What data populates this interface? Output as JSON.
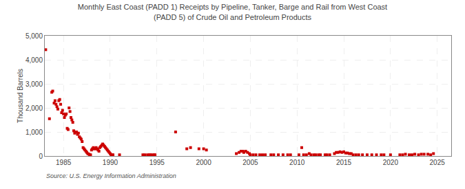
{
  "chart_data": {
    "type": "scatter",
    "title": "Monthly East Coast (PADD 1) Receipts by Pipeline, Tanker, Barge and Rail from West Coast\n(PADD 5) of Crude Oil and Petroleum Products",
    "ylabel": "Thousand Barrels",
    "annotations": [
      "Source: U.S. Energy Information Administration"
    ],
    "color": "#cc0000",
    "marker": "square",
    "grid": true,
    "xlim": [
      1983.0,
      2026.5
    ],
    "xticks": [
      1985,
      1990,
      1995,
      2000,
      2005,
      2010,
      2015,
      2020,
      2025
    ],
    "ylim": [
      0,
      5000
    ],
    "yticks": [
      0,
      {
        "value": 1000,
        "label": "1,000"
      },
      {
        "value": 2000,
        "label": "2,000"
      },
      {
        "value": 3000,
        "label": "3,000"
      },
      {
        "value": 4000,
        "label": "4,000"
      },
      {
        "value": 5000,
        "label": "5,000"
      }
    ],
    "x": [
      1983.1,
      1983.5,
      1983.75,
      1983.85,
      1984.0,
      1984.1,
      1984.2,
      1984.3,
      1984.4,
      1984.5,
      1984.6,
      1984.7,
      1984.8,
      1984.9,
      1985.0,
      1985.1,
      1985.2,
      1985.3,
      1985.4,
      1985.5,
      1985.6,
      1985.7,
      1985.8,
      1985.9,
      1986.0,
      1986.1,
      1986.2,
      1986.3,
      1986.4,
      1986.5,
      1986.6,
      1986.7,
      1986.8,
      1986.9,
      1987.0,
      1987.1,
      1987.2,
      1987.3,
      1987.4,
      1987.5,
      1987.6,
      1987.7,
      1987.8,
      1987.9,
      1988.0,
      1988.1,
      1988.2,
      1988.3,
      1988.4,
      1988.5,
      1988.6,
      1988.7,
      1988.8,
      1988.9,
      1989.0,
      1989.1,
      1989.2,
      1989.3,
      1989.4,
      1989.5,
      1989.6,
      1989.7,
      1989.8,
      1989.9,
      1990.0,
      1990.1,
      1990.2,
      1990.3,
      1991.0,
      1993.5,
      1993.7,
      1994.0,
      1994.2,
      1994.3,
      1994.5,
      1994.7,
      1994.8,
      1997.0,
      1998.2,
      1998.6,
      1999.5,
      2000.0,
      2000.3,
      2003.5,
      2003.8,
      2004.0,
      2004.2,
      2004.3,
      2004.5,
      2004.7,
      2004.9,
      2005.0,
      2005.3,
      2005.6,
      2006.0,
      2006.3,
      2006.6,
      2007.2,
      2007.5,
      2008.0,
      2008.5,
      2009.0,
      2009.3,
      2010.2,
      2010.5,
      2010.7,
      2011.0,
      2011.3,
      2011.5,
      2011.8,
      2012.0,
      2012.3,
      2012.5,
      2013.0,
      2013.2,
      2013.5,
      2014.0,
      2014.2,
      2014.4,
      2014.6,
      2014.8,
      2015.0,
      2015.2,
      2015.4,
      2015.6,
      2015.8,
      2016.0,
      2016.3,
      2016.6,
      2017.0,
      2017.5,
      2018.0,
      2018.5,
      2019.0,
      2019.3,
      2020.0,
      2021.0,
      2021.3,
      2021.6,
      2022.0,
      2022.3,
      2022.6,
      2023.0,
      2023.3,
      2023.6,
      2024.0,
      2024.3,
      2024.6
    ],
    "values": [
      4420,
      1550,
      2650,
      2700,
      2200,
      2300,
      2150,
      2050,
      1950,
      2300,
      2350,
      2150,
      1800,
      1900,
      1750,
      1600,
      1700,
      1750,
      1150,
      1100,
      2000,
      1850,
      1600,
      1500,
      1400,
      1050,
      950,
      1000,
      1000,
      900,
      950,
      800,
      750,
      700,
      600,
      350,
      300,
      250,
      200,
      150,
      100,
      80,
      50,
      50,
      250,
      300,
      350,
      300,
      300,
      350,
      300,
      250,
      200,
      350,
      400,
      450,
      500,
      450,
      400,
      350,
      300,
      250,
      200,
      150,
      100,
      50,
      50,
      50,
      50,
      50,
      50,
      50,
      50,
      50,
      50,
      50,
      50,
      1000,
      300,
      350,
      300,
      300,
      250,
      100,
      150,
      200,
      200,
      150,
      200,
      150,
      100,
      50,
      50,
      50,
      50,
      50,
      50,
      50,
      50,
      50,
      50,
      50,
      50,
      50,
      350,
      50,
      50,
      100,
      50,
      50,
      50,
      50,
      50,
      50,
      50,
      50,
      100,
      150,
      150,
      175,
      150,
      175,
      125,
      125,
      100,
      100,
      50,
      50,
      50,
      50,
      50,
      50,
      50,
      50,
      50,
      50,
      50,
      50,
      75,
      50,
      50,
      75,
      50,
      75,
      75,
      75,
      50,
      100
    ]
  }
}
